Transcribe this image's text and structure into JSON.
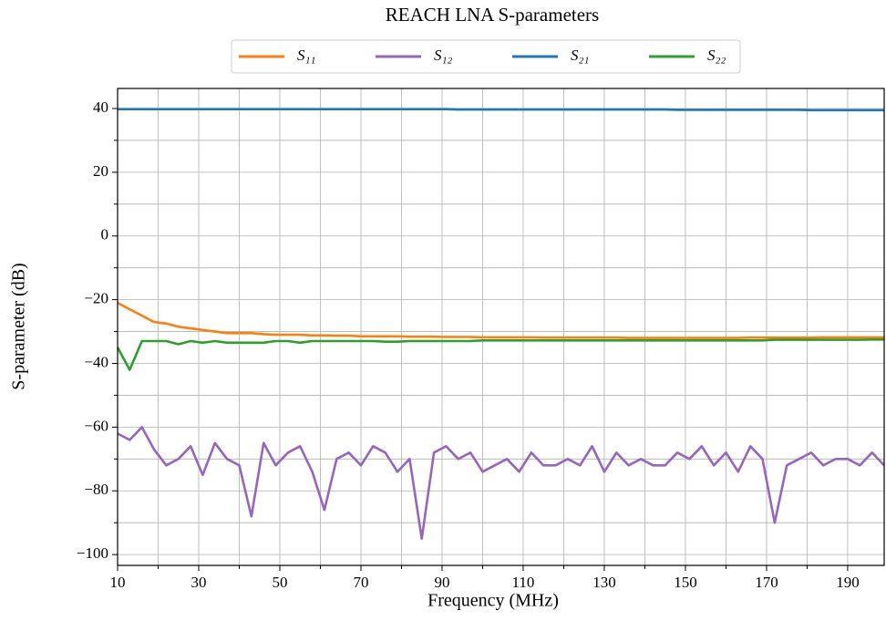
{
  "chart_data": {
    "type": "line",
    "title": "REACH LNA S-parameters",
    "x_label": "Frequency (MHz)",
    "y_label": "S-parameter (dB)",
    "x": [
      10,
      13,
      16,
      19,
      22,
      25,
      28,
      31,
      34,
      37,
      40,
      43,
      46,
      49,
      52,
      55,
      58,
      61,
      64,
      67,
      70,
      73,
      76,
      79,
      82,
      85,
      88,
      91,
      94,
      97,
      100,
      103,
      106,
      109,
      112,
      115,
      118,
      121,
      124,
      127,
      130,
      133,
      136,
      139,
      142,
      145,
      148,
      151,
      154,
      157,
      160,
      163,
      166,
      169,
      172,
      175,
      178,
      181,
      184,
      187,
      190,
      193,
      196,
      199
    ],
    "series": [
      {
        "name": "S₁₁",
        "color": "#ff7f0e",
        "values": [
          -21,
          -23,
          -25,
          -27,
          -27.5,
          -28.5,
          -29,
          -29.5,
          -30,
          -30.5,
          -30.5,
          -30.5,
          -30.8,
          -31,
          -31,
          -31,
          -31.2,
          -31.2,
          -31.3,
          -31.3,
          -31.5,
          -31.5,
          -31.5,
          -31.5,
          -31.6,
          -31.6,
          -31.6,
          -31.7,
          -31.7,
          -31.7,
          -31.8,
          -31.8,
          -31.8,
          -31.8,
          -31.8,
          -31.9,
          -31.9,
          -31.9,
          -31.9,
          -31.9,
          -31.9,
          -31.9,
          -32,
          -32,
          -32,
          -32,
          -32,
          -32,
          -32,
          -32,
          -32,
          -32,
          -31.9,
          -31.9,
          -31.9,
          -31.9,
          -31.9,
          -31.9,
          -31.8,
          -31.8,
          -31.8,
          -31.8,
          -31.8,
          -31.8
        ]
      },
      {
        "name": "S₁₂",
        "color": "#9467bd",
        "values": [
          -62,
          -64,
          -60,
          -67,
          -72,
          -70,
          -66,
          -75,
          -65,
          -70,
          -72,
          -88,
          -65,
          -72,
          -68,
          -66,
          -74,
          -86,
          -70,
          -68,
          -72,
          -66,
          -68,
          -74,
          -70,
          -95,
          -68,
          -66,
          -70,
          -68,
          -74,
          -72,
          -70,
          -74,
          -68,
          -72,
          -72,
          -70,
          -72,
          -66,
          -74,
          -68,
          -72,
          -70,
          -72,
          -72,
          -68,
          -70,
          -66,
          -72,
          -68,
          -74,
          -66,
          -70,
          -90,
          -72,
          -70,
          -68,
          -72,
          -70,
          -70,
          -72,
          -68,
          -72
        ]
      },
      {
        "name": "S₂₁",
        "color": "#1f77b4",
        "values": [
          39.8,
          39.8,
          39.8,
          39.8,
          39.8,
          39.8,
          39.8,
          39.8,
          39.8,
          39.8,
          39.8,
          39.8,
          39.8,
          39.8,
          39.8,
          39.8,
          39.8,
          39.8,
          39.8,
          39.8,
          39.8,
          39.8,
          39.8,
          39.8,
          39.8,
          39.8,
          39.8,
          39.8,
          39.7,
          39.7,
          39.7,
          39.7,
          39.7,
          39.7,
          39.7,
          39.7,
          39.7,
          39.7,
          39.7,
          39.7,
          39.7,
          39.7,
          39.7,
          39.7,
          39.7,
          39.7,
          39.6,
          39.6,
          39.6,
          39.6,
          39.6,
          39.6,
          39.6,
          39.6,
          39.6,
          39.6,
          39.6,
          39.5,
          39.5,
          39.5,
          39.5,
          39.5,
          39.5,
          39.5
        ]
      },
      {
        "name": "S₂₂",
        "color": "#2ca02c",
        "values": [
          -35,
          -42,
          -33,
          -33,
          -33,
          -34,
          -33,
          -33.5,
          -33,
          -33.5,
          -33.5,
          -33.5,
          -33.5,
          -33,
          -33,
          -33.5,
          -33,
          -33,
          -33,
          -33,
          -33,
          -33,
          -33.2,
          -33.2,
          -33,
          -33,
          -33,
          -33,
          -33,
          -33,
          -32.8,
          -32.8,
          -32.8,
          -32.8,
          -32.8,
          -32.8,
          -32.8,
          -32.8,
          -32.8,
          -32.8,
          -32.8,
          -32.8,
          -32.8,
          -32.8,
          -32.8,
          -32.8,
          -32.8,
          -32.8,
          -32.8,
          -32.8,
          -32.8,
          -32.8,
          -32.8,
          -32.8,
          -32.6,
          -32.6,
          -32.6,
          -32.6,
          -32.6,
          -32.6,
          -32.6,
          -32.6,
          -32.5,
          -32.5
        ]
      }
    ],
    "xlim": [
      10,
      199
    ],
    "ylim": [
      -103.4,
      46.3
    ],
    "xticks": [
      10,
      30,
      50,
      70,
      90,
      110,
      130,
      150,
      170,
      190
    ],
    "xminorticks": [
      20,
      40,
      60,
      80,
      100,
      120,
      140,
      160,
      180
    ],
    "yticks": [
      {
        "value": -100,
        "label": "−100"
      },
      {
        "value": -80,
        "label": "−80"
      },
      {
        "value": -60,
        "label": "−60"
      },
      {
        "value": -40,
        "label": "−40"
      },
      {
        "value": -20,
        "label": "−20"
      },
      0,
      20,
      40
    ],
    "yminorticks": [
      -90,
      -70,
      -50,
      -30,
      -10,
      10,
      30
    ],
    "grid": true,
    "legend": "top"
  }
}
